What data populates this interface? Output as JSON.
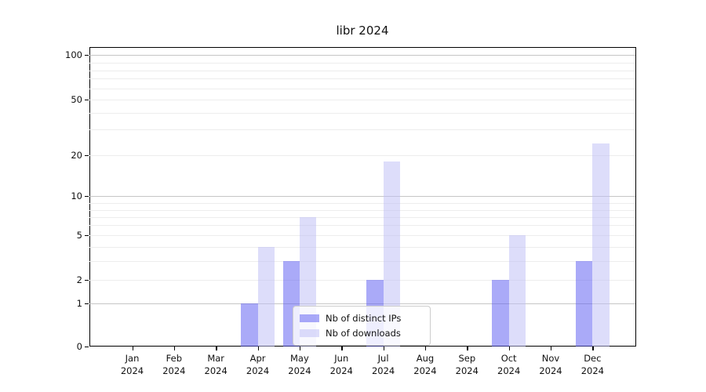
{
  "title": "libr 2024",
  "chart_data": {
    "type": "bar",
    "title": "libr 2024",
    "categories": [
      "Jan",
      "Feb",
      "Mar",
      "Apr",
      "May",
      "Jun",
      "Jul",
      "Aug",
      "Sep",
      "Oct",
      "Nov",
      "Dec"
    ],
    "year_label": "2024",
    "series": [
      {
        "name": "Nb of distinct IPs",
        "color": "rgba(92,92,241,0.52)",
        "values": [
          0,
          0,
          0,
          1,
          3,
          0,
          2,
          0,
          0,
          2,
          0,
          3
        ]
      },
      {
        "name": "Nb of downloads",
        "color": "rgba(190,190,245,0.52)",
        "values": [
          0,
          0,
          0,
          4,
          7,
          0,
          18,
          0,
          0,
          5,
          0,
          24
        ]
      }
    ],
    "y_axis": {
      "tick_values": [
        0,
        1,
        2,
        5,
        10,
        20,
        50,
        100
      ],
      "major_grid": [
        1,
        10,
        100
      ],
      "minor_grid": [
        2,
        3,
        4,
        5,
        6,
        7,
        8,
        9,
        20,
        30,
        40,
        50,
        60,
        70,
        80,
        90
      ],
      "ylim": [
        0,
        110
      ],
      "scale": "symlog"
    },
    "legend": {
      "entries": [
        "Nb of distinct IPs",
        "Nb of downloads"
      ],
      "position": "lower center"
    },
    "grid": true,
    "colors": {
      "major_grid": "#c6c6c6",
      "minor_grid": "#ededed",
      "spine": "#000000",
      "background": "#ffffff"
    }
  }
}
